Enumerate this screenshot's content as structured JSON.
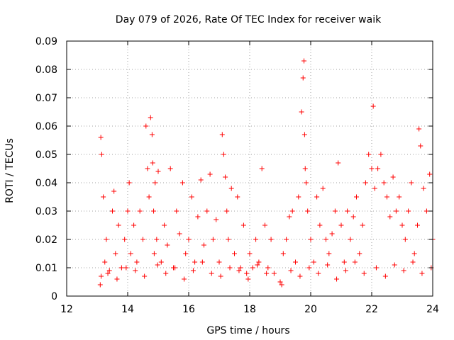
{
  "chart_data": {
    "type": "scatter",
    "title": "Day 079 of 2026, Rate Of TEC Index for receiver waik",
    "xlabel": "GPS time / hours",
    "ylabel": "ROTI / TECUs",
    "xlim": [
      12,
      24
    ],
    "ylim": [
      0,
      0.09
    ],
    "grid": true,
    "marker": "+",
    "marker_color": "#ff0000",
    "x_ticks": [
      12,
      14,
      16,
      18,
      20,
      22,
      24
    ],
    "x_tick_labels": [
      "12",
      "14",
      "16",
      "18",
      "20",
      "22",
      "24"
    ],
    "y_ticks": [
      0,
      0.01,
      0.02,
      0.03,
      0.04,
      0.05,
      0.06,
      0.07,
      0.08,
      0.09
    ],
    "y_tick_labels": [
      "0",
      "0.01",
      "0.02",
      "0.03",
      "0.04",
      "0.05",
      "0.06",
      "0.07",
      "0.08",
      "0.09"
    ],
    "series": [
      {
        "name": "ROTI",
        "x": [
          13.1,
          13.12,
          13.15,
          13.2,
          13.25,
          13.3,
          13.4,
          13.5,
          13.55,
          13.6,
          13.7,
          13.8,
          13.9,
          14.0,
          14.05,
          14.1,
          14.2,
          14.3,
          14.4,
          14.5,
          14.6,
          14.65,
          14.7,
          14.75,
          14.8,
          14.82,
          14.85,
          14.87,
          14.9,
          14.95,
          15.0,
          15.1,
          15.2,
          15.3,
          15.4,
          15.5,
          15.6,
          15.7,
          15.8,
          15.9,
          16.0,
          16.1,
          16.2,
          16.3,
          16.4,
          16.5,
          16.6,
          16.7,
          16.8,
          16.9,
          17.0,
          17.1,
          17.15,
          17.2,
          17.25,
          17.3,
          17.4,
          17.5,
          17.6,
          17.7,
          17.8,
          17.9,
          18.0,
          18.1,
          18.2,
          18.3,
          18.4,
          18.5,
          18.6,
          18.7,
          18.8,
          19.0,
          19.1,
          19.2,
          19.3,
          19.4,
          19.5,
          19.6,
          19.7,
          19.75,
          19.78,
          19.8,
          19.82,
          19.85,
          19.9,
          20.0,
          20.1,
          20.2,
          20.3,
          20.4,
          20.5,
          20.6,
          20.7,
          20.8,
          20.9,
          21.0,
          21.1,
          21.2,
          21.3,
          21.4,
          21.5,
          21.6,
          21.7,
          21.8,
          21.9,
          22.0,
          22.05,
          22.1,
          22.2,
          22.3,
          22.4,
          22.5,
          22.6,
          22.7,
          22.8,
          22.9,
          23.0,
          23.1,
          23.2,
          23.3,
          23.4,
          23.5,
          23.55,
          23.6,
          23.7,
          23.8,
          23.9,
          24.0,
          13.13,
          13.35,
          13.65,
          13.95,
          14.25,
          14.55,
          14.98,
          15.25,
          15.55,
          15.85,
          16.15,
          16.45,
          16.75,
          17.05,
          17.35,
          17.65,
          17.95,
          18.25,
          18.55,
          19.05,
          19.35,
          19.65,
          19.95,
          20.25,
          20.55,
          20.85,
          21.15,
          21.45,
          21.75,
          22.15,
          22.45,
          22.75,
          23.05,
          23.35,
          23.65,
          23.95
        ],
        "y": [
          0.004,
          0.056,
          0.05,
          0.035,
          0.012,
          0.02,
          0.009,
          0.03,
          0.037,
          0.015,
          0.025,
          0.01,
          0.02,
          0.03,
          0.04,
          0.015,
          0.025,
          0.012,
          0.03,
          0.02,
          0.06,
          0.045,
          0.035,
          0.063,
          0.057,
          0.047,
          0.03,
          0.015,
          0.04,
          0.02,
          0.044,
          0.012,
          0.025,
          0.018,
          0.045,
          0.01,
          0.03,
          0.022,
          0.04,
          0.015,
          0.02,
          0.035,
          0.012,
          0.028,
          0.041,
          0.018,
          0.03,
          0.043,
          0.02,
          0.027,
          0.012,
          0.057,
          0.05,
          0.042,
          0.03,
          0.02,
          0.038,
          0.015,
          0.035,
          0.01,
          0.025,
          0.008,
          0.015,
          0.01,
          0.02,
          0.012,
          0.045,
          0.025,
          0.01,
          0.02,
          0.008,
          0.005,
          0.015,
          0.02,
          0.028,
          0.03,
          0.012,
          0.035,
          0.065,
          0.077,
          0.083,
          0.057,
          0.045,
          0.04,
          0.03,
          0.02,
          0.012,
          0.035,
          0.025,
          0.038,
          0.02,
          0.015,
          0.022,
          0.03,
          0.047,
          0.025,
          0.012,
          0.03,
          0.02,
          0.028,
          0.035,
          0.015,
          0.025,
          0.04,
          0.05,
          0.045,
          0.067,
          0.038,
          0.045,
          0.05,
          0.04,
          0.035,
          0.028,
          0.042,
          0.03,
          0.035,
          0.025,
          0.02,
          0.03,
          0.04,
          0.015,
          0.025,
          0.059,
          0.053,
          0.038,
          0.03,
          0.043,
          0.02,
          0.007,
          0.008,
          0.006,
          0.01,
          0.009,
          0.007,
          0.011,
          0.008,
          0.01,
          0.006,
          0.009,
          0.012,
          0.008,
          0.007,
          0.01,
          0.009,
          0.006,
          0.011,
          0.008,
          0.004,
          0.009,
          0.007,
          0.01,
          0.008,
          0.011,
          0.006,
          0.009,
          0.012,
          0.008,
          0.01,
          0.007,
          0.011,
          0.009,
          0.012,
          0.008,
          0.01
        ]
      }
    ]
  }
}
